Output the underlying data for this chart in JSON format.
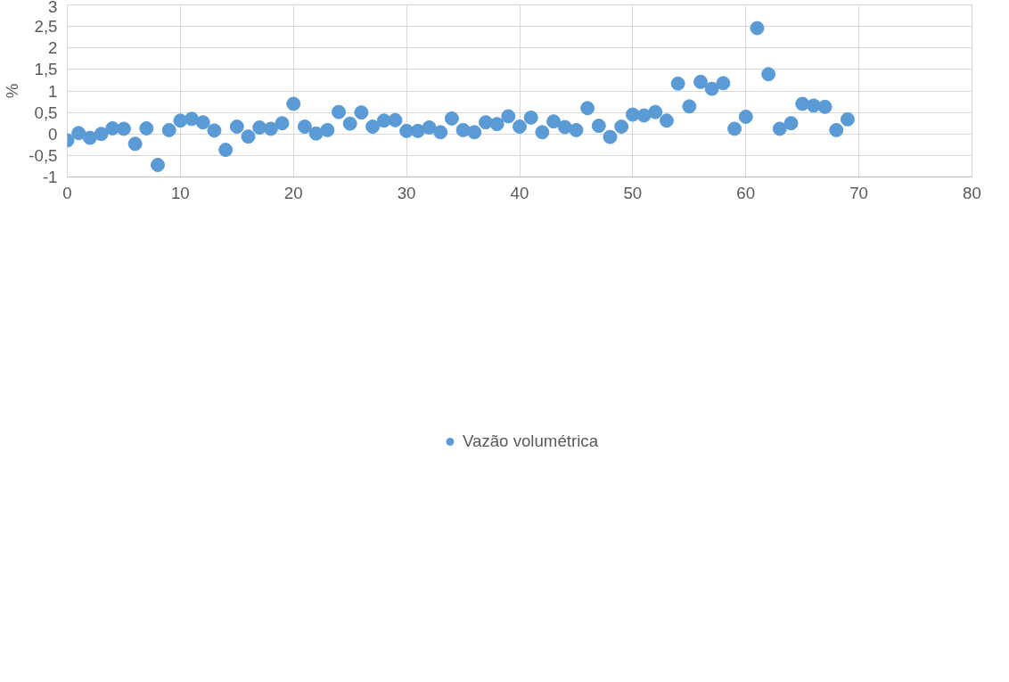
{
  "chart_data": {
    "type": "scatter",
    "ylabel": "%",
    "x": [
      0,
      1,
      2,
      3,
      4,
      5,
      6,
      7,
      8,
      9,
      10,
      11,
      12,
      13,
      14,
      15,
      16,
      17,
      18,
      19,
      20,
      21,
      22,
      23,
      24,
      25,
      26,
      27,
      28,
      29,
      30,
      31,
      32,
      33,
      34,
      35,
      36,
      37,
      38,
      39,
      40,
      41,
      42,
      43,
      44,
      45,
      46,
      47,
      48,
      49,
      50,
      51,
      52,
      53,
      54,
      55,
      56,
      57,
      58,
      59,
      60,
      61,
      62,
      63,
      64,
      65,
      66,
      67,
      68,
      69
    ],
    "series": [
      {
        "name": "Vazão volumétrica",
        "color": "#5b9bd5",
        "values": [
          -0.15,
          0.02,
          -0.09,
          0.0,
          0.13,
          0.12,
          -0.23,
          0.13,
          -0.72,
          0.09,
          0.31,
          0.35,
          0.27,
          0.08,
          -0.37,
          0.17,
          -0.06,
          0.15,
          0.12,
          0.25,
          0.7,
          0.17,
          0.01,
          0.09,
          0.51,
          0.24,
          0.5,
          0.17,
          0.31,
          0.32,
          0.07,
          0.07,
          0.15,
          0.04,
          0.36,
          0.09,
          0.04,
          0.27,
          0.23,
          0.41,
          0.17,
          0.38,
          0.04,
          0.29,
          0.16,
          0.09,
          0.6,
          0.19,
          -0.07,
          0.17,
          0.45,
          0.43,
          0.51,
          0.31,
          1.17,
          0.64,
          1.21,
          1.05,
          1.18,
          0.12,
          0.4,
          2.46,
          1.39,
          0.12,
          0.25,
          0.7,
          0.66,
          0.63,
          0.09,
          0.34
        ]
      }
    ],
    "xlim": [
      0,
      80
    ],
    "xticks": [
      0,
      10,
      20,
      30,
      40,
      50,
      60,
      70,
      80
    ],
    "ylim": [
      -1,
      3
    ],
    "yticks": [
      -1,
      {
        "value": -0.5,
        "label": "-0,5"
      },
      0,
      {
        "value": 0.5,
        "label": "0,5"
      },
      1,
      {
        "value": 1.5,
        "label": "1,5"
      },
      2,
      {
        "value": 2.5,
        "label": "2,5"
      },
      3
    ],
    "grid": true,
    "legend": "bottom",
    "marker": "circle"
  }
}
